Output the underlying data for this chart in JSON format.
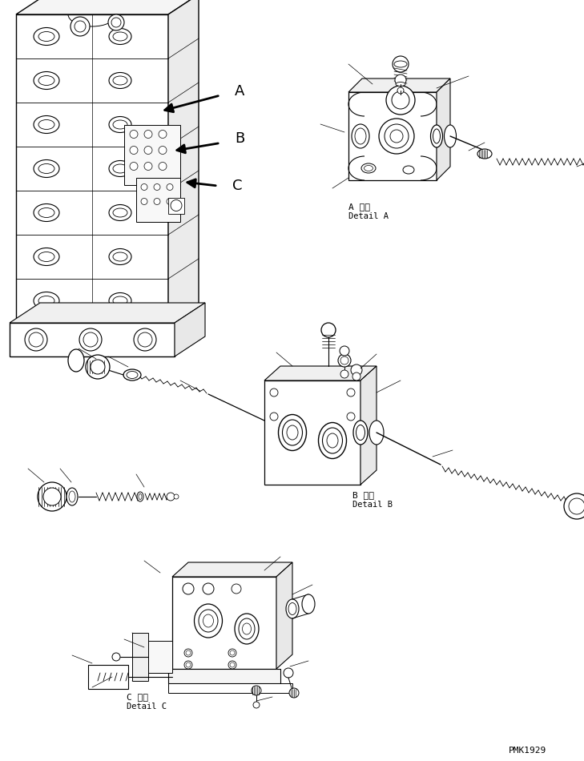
{
  "background_color": "#ffffff",
  "line_color": "#000000",
  "label_A_japanese": "A 詳細",
  "label_A_english": "Detail A",
  "label_B_japanese": "B 詳細",
  "label_B_english": "Detail B",
  "label_C_japanese": "C 詳細",
  "label_C_english": "Detail C",
  "watermark": "PMK1929",
  "fig_width": 7.29,
  "fig_height": 9.5,
  "dpi": 100
}
